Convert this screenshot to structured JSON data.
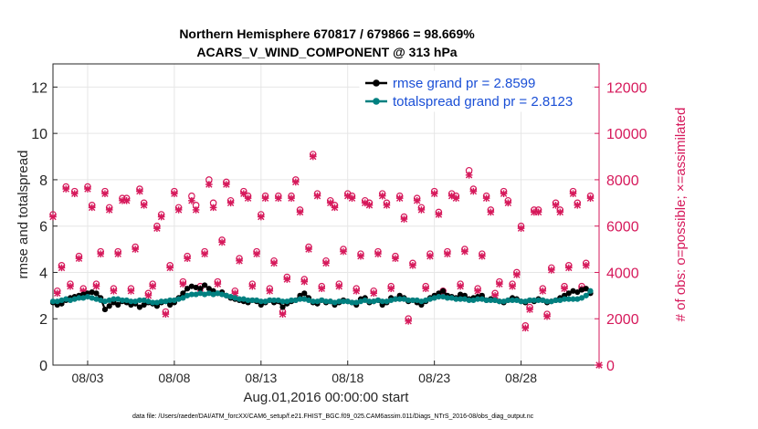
{
  "chart_data": {
    "type": "line",
    "title": "Northern Hemisphere 670817 / 679866 = 98.669%",
    "subtitle": "ACARS_V_WIND_COMPONENT @ 313 hPa",
    "xlabel": "Aug.01,2016 00:00:00 start",
    "ylabel": "rmse and totalspread",
    "ylabel_right": "# of obs: o=possible; ×=assimilated",
    "footnote": "data file: /Users/raeder/DAI/ATM_forcXX/CAM6_setup/f.e21.FHIST_BGC.f09_025.CAM6assim.011/Diags_NTrS_2016-08/obs_diag_output.nc",
    "xlim": [
      0.0,
      31.5
    ],
    "ylim": [
      0,
      13
    ],
    "ylim_right": [
      0,
      13000
    ],
    "x_ticks": [
      2,
      7,
      12,
      17,
      22,
      27
    ],
    "x_tick_labels": [
      "08/03",
      "08/08",
      "08/13",
      "08/18",
      "08/23",
      "08/28"
    ],
    "y_ticks": [
      0,
      2,
      4,
      6,
      8,
      10,
      12
    ],
    "y_right_ticks": [
      0,
      2000,
      4000,
      6000,
      8000,
      10000,
      12000
    ],
    "grid": true,
    "legend_position": "top-right",
    "series": [
      {
        "name": "rmse grand pr = 2.8599",
        "color": "#000000",
        "axis": "left",
        "x": [
          0.0,
          0.25,
          0.5,
          0.75,
          1.0,
          1.25,
          1.5,
          1.75,
          2.0,
          2.25,
          2.5,
          2.75,
          3.0,
          3.25,
          3.5,
          3.75,
          4.0,
          4.25,
          4.5,
          4.75,
          5.0,
          5.25,
          5.5,
          5.75,
          6.0,
          6.25,
          6.5,
          6.75,
          7.0,
          7.25,
          7.5,
          7.75,
          8.0,
          8.25,
          8.5,
          8.75,
          9.0,
          9.25,
          9.5,
          9.75,
          10.0,
          10.25,
          10.5,
          10.75,
          11.0,
          11.25,
          11.5,
          11.75,
          12.0,
          12.25,
          12.5,
          12.75,
          13.0,
          13.25,
          13.5,
          13.75,
          14.0,
          14.25,
          14.5,
          14.75,
          15.0,
          15.25,
          15.5,
          15.75,
          16.0,
          16.25,
          16.5,
          16.75,
          17.0,
          17.25,
          17.5,
          17.75,
          18.0,
          18.25,
          18.5,
          18.75,
          19.0,
          19.25,
          19.5,
          19.75,
          20.0,
          20.25,
          20.5,
          20.75,
          21.0,
          21.25,
          21.5,
          21.75,
          22.0,
          22.25,
          22.5,
          22.75,
          23.0,
          23.25,
          23.5,
          23.75,
          24.0,
          24.25,
          24.5,
          24.75,
          25.0,
          25.25,
          25.5,
          25.75,
          26.0,
          26.25,
          26.5,
          26.75,
          27.0,
          27.25,
          27.5,
          27.75,
          28.0,
          28.25,
          28.5,
          28.75,
          29.0,
          29.25,
          29.5,
          29.75,
          30.0,
          30.25,
          30.5,
          30.75,
          31.0
        ],
        "values": [
          2.7,
          2.6,
          2.65,
          2.8,
          2.9,
          2.95,
          3.0,
          3.05,
          3.1,
          3.15,
          3.1,
          2.9,
          2.4,
          2.55,
          2.7,
          2.6,
          2.75,
          2.7,
          2.6,
          2.65,
          2.5,
          2.6,
          2.7,
          2.65,
          2.55,
          2.7,
          2.75,
          2.6,
          2.7,
          2.9,
          3.1,
          3.3,
          3.4,
          3.35,
          3.3,
          3.45,
          3.3,
          3.2,
          3.1,
          3.15,
          3.0,
          2.9,
          2.85,
          2.8,
          2.75,
          2.7,
          2.8,
          2.75,
          2.6,
          2.7,
          2.8,
          2.7,
          2.75,
          2.5,
          2.65,
          2.75,
          2.8,
          3.0,
          3.1,
          2.9,
          2.7,
          2.65,
          2.8,
          2.7,
          2.75,
          2.6,
          2.7,
          2.8,
          2.75,
          2.7,
          2.6,
          2.85,
          2.9,
          2.7,
          2.75,
          2.8,
          2.6,
          2.7,
          2.9,
          2.85,
          3.0,
          2.9,
          2.75,
          2.8,
          2.7,
          2.6,
          2.75,
          2.9,
          3.0,
          3.1,
          3.2,
          3.0,
          2.95,
          2.9,
          3.05,
          3.0,
          2.85,
          2.9,
          2.95,
          3.0,
          2.8,
          2.85,
          2.8,
          2.75,
          2.7,
          2.8,
          2.9,
          2.85,
          2.75,
          2.7,
          2.8,
          2.75,
          2.85,
          2.8,
          2.7,
          2.75,
          2.8,
          2.9,
          3.0,
          3.1,
          3.2,
          3.15,
          3.25,
          3.3,
          3.1
        ]
      },
      {
        "name": "totalspread grand pr = 2.8123",
        "color": "#008080",
        "axis": "left",
        "x": [
          0.0,
          0.25,
          0.5,
          0.75,
          1.0,
          1.25,
          1.5,
          1.75,
          2.0,
          2.25,
          2.5,
          2.75,
          3.0,
          3.25,
          3.5,
          3.75,
          4.0,
          4.25,
          4.5,
          4.75,
          5.0,
          5.25,
          5.5,
          5.75,
          6.0,
          6.25,
          6.5,
          6.75,
          7.0,
          7.25,
          7.5,
          7.75,
          8.0,
          8.25,
          8.5,
          8.75,
          9.0,
          9.25,
          9.5,
          9.75,
          10.0,
          10.25,
          10.5,
          10.75,
          11.0,
          11.25,
          11.5,
          11.75,
          12.0,
          12.25,
          12.5,
          12.75,
          13.0,
          13.25,
          13.5,
          13.75,
          14.0,
          14.25,
          14.5,
          14.75,
          15.0,
          15.25,
          15.5,
          15.75,
          16.0,
          16.25,
          16.5,
          16.75,
          17.0,
          17.25,
          17.5,
          17.75,
          18.0,
          18.25,
          18.5,
          18.75,
          19.0,
          19.25,
          19.5,
          19.75,
          20.0,
          20.25,
          20.5,
          20.75,
          21.0,
          21.25,
          21.5,
          21.75,
          22.0,
          22.25,
          22.5,
          22.75,
          23.0,
          23.25,
          23.5,
          23.75,
          24.0,
          24.25,
          24.5,
          24.75,
          25.0,
          25.25,
          25.5,
          25.75,
          26.0,
          26.25,
          26.5,
          26.75,
          27.0,
          27.25,
          27.5,
          27.75,
          28.0,
          28.25,
          28.5,
          28.75,
          29.0,
          29.25,
          29.5,
          29.75,
          30.0,
          30.25,
          30.5,
          30.75,
          31.0
        ],
        "values": [
          2.75,
          2.75,
          2.8,
          2.85,
          2.8,
          2.85,
          2.9,
          2.9,
          2.95,
          2.9,
          2.85,
          2.8,
          2.75,
          2.8,
          2.85,
          2.85,
          2.8,
          2.8,
          2.75,
          2.75,
          2.8,
          2.8,
          2.75,
          2.7,
          2.7,
          2.75,
          2.75,
          2.8,
          2.8,
          2.85,
          2.9,
          3.0,
          3.05,
          3.05,
          3.1,
          3.05,
          3.1,
          3.05,
          3.1,
          3.05,
          3.0,
          2.95,
          2.9,
          2.85,
          2.85,
          2.8,
          2.8,
          2.8,
          2.75,
          2.75,
          2.8,
          2.8,
          2.8,
          2.75,
          2.75,
          2.8,
          2.8,
          2.85,
          2.85,
          2.8,
          2.75,
          2.75,
          2.8,
          2.75,
          2.75,
          2.7,
          2.75,
          2.75,
          2.75,
          2.7,
          2.7,
          2.75,
          2.8,
          2.75,
          2.75,
          2.8,
          2.75,
          2.75,
          2.8,
          2.85,
          2.85,
          2.85,
          2.8,
          2.8,
          2.8,
          2.75,
          2.8,
          2.85,
          2.9,
          2.95,
          2.95,
          2.9,
          2.9,
          2.85,
          2.85,
          2.85,
          2.8,
          2.8,
          2.85,
          2.85,
          2.8,
          2.8,
          2.8,
          2.75,
          2.75,
          2.8,
          2.8,
          2.8,
          2.75,
          2.75,
          2.8,
          2.8,
          2.8,
          2.8,
          2.75,
          2.75,
          2.8,
          2.8,
          2.85,
          2.85,
          2.85,
          2.85,
          2.9,
          3.0,
          3.2
        ]
      },
      {
        "name": "o=possible",
        "color": "#d6195b",
        "axis": "right",
        "marker": "circle",
        "x": [
          0.0,
          0.25,
          0.5,
          0.75,
          1.0,
          1.25,
          1.5,
          1.75,
          2.0,
          2.25,
          2.5,
          2.75,
          3.0,
          3.25,
          3.5,
          3.75,
          4.0,
          4.25,
          4.5,
          4.75,
          5.0,
          5.25,
          5.5,
          5.75,
          6.0,
          6.25,
          6.5,
          6.75,
          7.0,
          7.25,
          7.5,
          7.75,
          8.0,
          8.25,
          8.5,
          8.75,
          9.0,
          9.25,
          9.5,
          9.75,
          10.0,
          10.25,
          10.5,
          10.75,
          11.0,
          11.25,
          11.5,
          11.75,
          12.0,
          12.25,
          12.5,
          12.75,
          13.0,
          13.25,
          13.5,
          13.75,
          14.0,
          14.25,
          14.5,
          14.75,
          15.0,
          15.25,
          15.5,
          15.75,
          16.0,
          16.25,
          16.5,
          16.75,
          17.0,
          17.25,
          17.5,
          17.75,
          18.0,
          18.25,
          18.5,
          18.75,
          19.0,
          19.25,
          19.5,
          19.75,
          20.0,
          20.25,
          20.5,
          20.75,
          21.0,
          21.25,
          21.5,
          21.75,
          22.0,
          22.25,
          22.5,
          22.75,
          23.0,
          23.25,
          23.5,
          23.75,
          24.0,
          24.25,
          24.5,
          24.75,
          25.0,
          25.25,
          25.5,
          25.75,
          26.0,
          26.25,
          26.5,
          26.75,
          27.0,
          27.25,
          27.5,
          27.75,
          28.0,
          28.25,
          28.5,
          28.75,
          29.0,
          29.25,
          29.5,
          29.75,
          30.0,
          30.25,
          30.5,
          30.75,
          31.0
        ],
        "values": [
          6500,
          3200,
          4300,
          7700,
          3500,
          7500,
          4700,
          3300,
          7700,
          6900,
          3500,
          4900,
          7500,
          6800,
          3300,
          4900,
          7200,
          7200,
          3300,
          5100,
          7600,
          7000,
          3100,
          3500,
          6000,
          6500,
          2300,
          4300,
          7500,
          6800,
          3600,
          4700,
          7300,
          6900,
          3400,
          4900,
          8000,
          7000,
          3600,
          5400,
          7900,
          7100,
          3200,
          4600,
          7500,
          7300,
          3500,
          4900,
          6500,
          7300,
          3300,
          4500,
          7300,
          2300,
          3800,
          7300,
          8000,
          6700,
          3700,
          5100,
          9100,
          7400,
          3400,
          4500,
          7100,
          6900,
          3500,
          5000,
          7400,
          7300,
          3300,
          4800,
          7100,
          7000,
          3200,
          4900,
          7400,
          7000,
          3400,
          4700,
          7300,
          6400,
          2000,
          4400,
          7200,
          6800,
          3400,
          4800,
          7500,
          6600,
          3200,
          4900,
          7400,
          7300,
          3500,
          5000,
          8400,
          7600,
          3300,
          4800,
          7300,
          6700,
          3100,
          3600,
          7500,
          7100,
          3500,
          4000,
          6000,
          1700,
          2500,
          6700,
          6700,
          3300,
          2200,
          4200,
          7000,
          6700,
          3400,
          4300,
          7500,
          7000,
          3400,
          4400,
          7300
        ]
      },
      {
        "name": "×=assimilated",
        "color": "#d6195b",
        "axis": "right",
        "marker": "x",
        "x": [
          0.0,
          0.25,
          0.5,
          0.75,
          1.0,
          1.25,
          1.5,
          1.75,
          2.0,
          2.25,
          2.5,
          2.75,
          3.0,
          3.25,
          3.5,
          3.75,
          4.0,
          4.25,
          4.5,
          4.75,
          5.0,
          5.25,
          5.5,
          5.75,
          6.0,
          6.25,
          6.5,
          6.75,
          7.0,
          7.25,
          7.5,
          7.75,
          8.0,
          8.25,
          8.5,
          8.75,
          9.0,
          9.25,
          9.5,
          9.75,
          10.0,
          10.25,
          10.5,
          10.75,
          11.0,
          11.25,
          11.5,
          11.75,
          12.0,
          12.25,
          12.5,
          12.75,
          13.0,
          13.25,
          13.5,
          13.75,
          14.0,
          14.25,
          14.5,
          14.75,
          15.0,
          15.25,
          15.5,
          15.75,
          16.0,
          16.25,
          16.5,
          16.75,
          17.0,
          17.25,
          17.5,
          17.75,
          18.0,
          18.25,
          18.5,
          18.75,
          19.0,
          19.25,
          19.5,
          19.75,
          20.0,
          20.25,
          20.5,
          20.75,
          21.0,
          21.25,
          21.5,
          21.75,
          22.0,
          22.25,
          22.5,
          22.75,
          23.0,
          23.25,
          23.5,
          23.75,
          24.0,
          24.25,
          24.5,
          24.75,
          25.0,
          25.25,
          25.5,
          25.75,
          26.0,
          26.25,
          26.5,
          26.75,
          27.0,
          27.25,
          27.5,
          27.75,
          28.0,
          28.25,
          28.5,
          28.75,
          29.0,
          29.25,
          29.5,
          29.75,
          30.0,
          30.25,
          30.5,
          30.75,
          31.0
        ],
        "values": [
          6400,
          3100,
          4200,
          7600,
          3400,
          7400,
          4600,
          3200,
          7600,
          6800,
          3400,
          4800,
          7400,
          6700,
          3200,
          4800,
          7100,
          7100,
          3200,
          5000,
          7500,
          6900,
          3000,
          3400,
          5900,
          6400,
          2200,
          4200,
          7400,
          6700,
          3500,
          4600,
          7100,
          6700,
          3300,
          4800,
          7800,
          6800,
          3500,
          5300,
          7800,
          7000,
          3100,
          4500,
          7400,
          7200,
          3400,
          4800,
          6400,
          7200,
          3200,
          4400,
          7200,
          2200,
          3700,
          7200,
          7900,
          6600,
          3600,
          5000,
          9000,
          7300,
          3300,
          4400,
          7000,
          6800,
          3400,
          4900,
          7300,
          7200,
          3200,
          4700,
          7000,
          6900,
          3100,
          4800,
          7300,
          6900,
          3300,
          4600,
          7200,
          6300,
          1900,
          4300,
          7100,
          6700,
          3300,
          4700,
          7400,
          6500,
          3100,
          4800,
          7300,
          7200,
          3400,
          4900,
          8200,
          7500,
          3200,
          4700,
          7200,
          6600,
          3000,
          3500,
          7400,
          7000,
          3400,
          3900,
          5900,
          1600,
          2400,
          6600,
          6600,
          3200,
          2100,
          4100,
          6900,
          6600,
          3300,
          4200,
          7400,
          6900,
          3300,
          4300,
          7200
        ]
      }
    ],
    "extra_points": [
      {
        "series": "×=assimilated",
        "x": 31.5,
        "value": 0
      }
    ]
  }
}
